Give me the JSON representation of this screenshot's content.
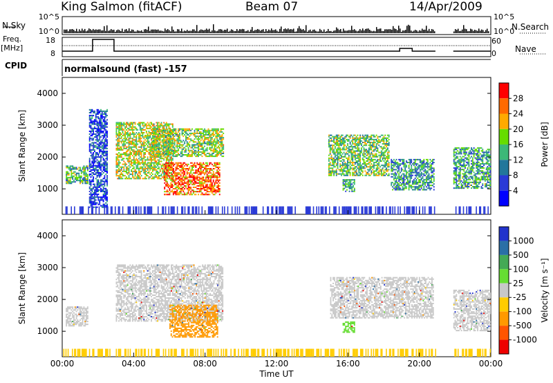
{
  "header": {
    "station": "King Salmon (fitACF)",
    "beam": "Beam 07",
    "date": "14/Apr/2009"
  },
  "aux_panels": {
    "nsky_label": "N.Sky",
    "nsearch_label": "N.Search",
    "freq_label_line1": "Freq.",
    "freq_label_line2": "[MHz]",
    "nave_label": "Nave",
    "cpid_label": "CPID",
    "cpid_value": "normalsound (fast) -157",
    "noise_ticks_left": [
      "10^5",
      "10^0"
    ],
    "noise_ticks_right": [
      "10^5",
      "10^0"
    ],
    "freq_ticks": [
      "18",
      "8"
    ],
    "nave_ticks": [
      "60",
      "0"
    ]
  },
  "colorbars": {
    "power": {
      "label": "Power [dB]",
      "ticks": [
        "28",
        "24",
        "20",
        "16",
        "12",
        "8",
        "4"
      ],
      "colors": [
        "#ff0000",
        "#ff6a00",
        "#ffaa00",
        "#66dd00",
        "#3cb878",
        "#22779b",
        "#2a3ad6",
        "#0000ff"
      ]
    },
    "velocity": {
      "label": "Velocity [m s⁻¹]",
      "ticks": [
        "1000",
        "500",
        "100",
        "25",
        "-25",
        "-100",
        "-500",
        "-1000"
      ],
      "colors": [
        "#2233cc",
        "#2a6fa6",
        "#44aa55",
        "#66dd33",
        "#c8c8c8",
        "#ffcc00",
        "#ff9900",
        "#ff5500",
        "#ee0000"
      ]
    }
  },
  "chart_data": [
    {
      "type": "heatmap",
      "panel": "power",
      "ylabel": "Slant Range [km]",
      "yticks": [
        1000,
        2000,
        3000,
        4000
      ],
      "ylim": [
        200,
        4500
      ],
      "xlim": [
        0,
        24
      ],
      "regions": [
        {
          "t0": 0.2,
          "t1": 1.4,
          "r0": 1150,
          "r1": 1700,
          "level": 0.45
        },
        {
          "t0": 1.5,
          "t1": 2.5,
          "r0": 400,
          "r1": 3500,
          "level": 0.15
        },
        {
          "t0": 3.0,
          "t1": 6.2,
          "r0": 1300,
          "r1": 3100,
          "level": 0.6
        },
        {
          "t0": 5.0,
          "t1": 9.0,
          "r0": 2000,
          "r1": 2900,
          "level": 0.55
        },
        {
          "t0": 5.7,
          "t1": 8.8,
          "r0": 800,
          "r1": 1800,
          "level": 0.85
        },
        {
          "t0": 14.9,
          "t1": 18.3,
          "r0": 1400,
          "r1": 2700,
          "level": 0.5
        },
        {
          "t0": 15.7,
          "t1": 16.4,
          "r0": 900,
          "r1": 1300,
          "level": 0.4
        },
        {
          "t0": 18.4,
          "t1": 20.8,
          "r0": 950,
          "r1": 1900,
          "level": 0.35
        },
        {
          "t0": 21.9,
          "t1": 24.0,
          "r0": 1000,
          "r1": 2300,
          "level": 0.4
        }
      ]
    },
    {
      "type": "heatmap",
      "panel": "velocity",
      "ylabel": "Slant Range [km]",
      "xlabel": "Time UT",
      "yticks": [
        1000,
        2000,
        3000,
        4000
      ],
      "ylim": [
        200,
        4500
      ],
      "xlim": [
        0,
        24
      ],
      "xticks": [
        "00:00",
        "04:00",
        "08:00",
        "12:00",
        "16:00",
        "20:00",
        "00:00"
      ],
      "regions": [
        {
          "t0": 0.2,
          "t1": 1.4,
          "r0": 1150,
          "r1": 1750,
          "vel": 0
        },
        {
          "t0": 3.0,
          "t1": 9.0,
          "r0": 1300,
          "r1": 3100,
          "vel": 0
        },
        {
          "t0": 6.0,
          "t1": 8.7,
          "r0": 800,
          "r1": 1800,
          "vel": -300
        },
        {
          "t0": 15.7,
          "t1": 16.4,
          "r0": 950,
          "r1": 1300,
          "vel": 150
        },
        {
          "t0": 15.0,
          "t1": 20.8,
          "r0": 1400,
          "r1": 2700,
          "vel": 0
        },
        {
          "t0": 21.9,
          "t1": 24.0,
          "r0": 1000,
          "r1": 2300,
          "vel": 0
        }
      ]
    }
  ]
}
